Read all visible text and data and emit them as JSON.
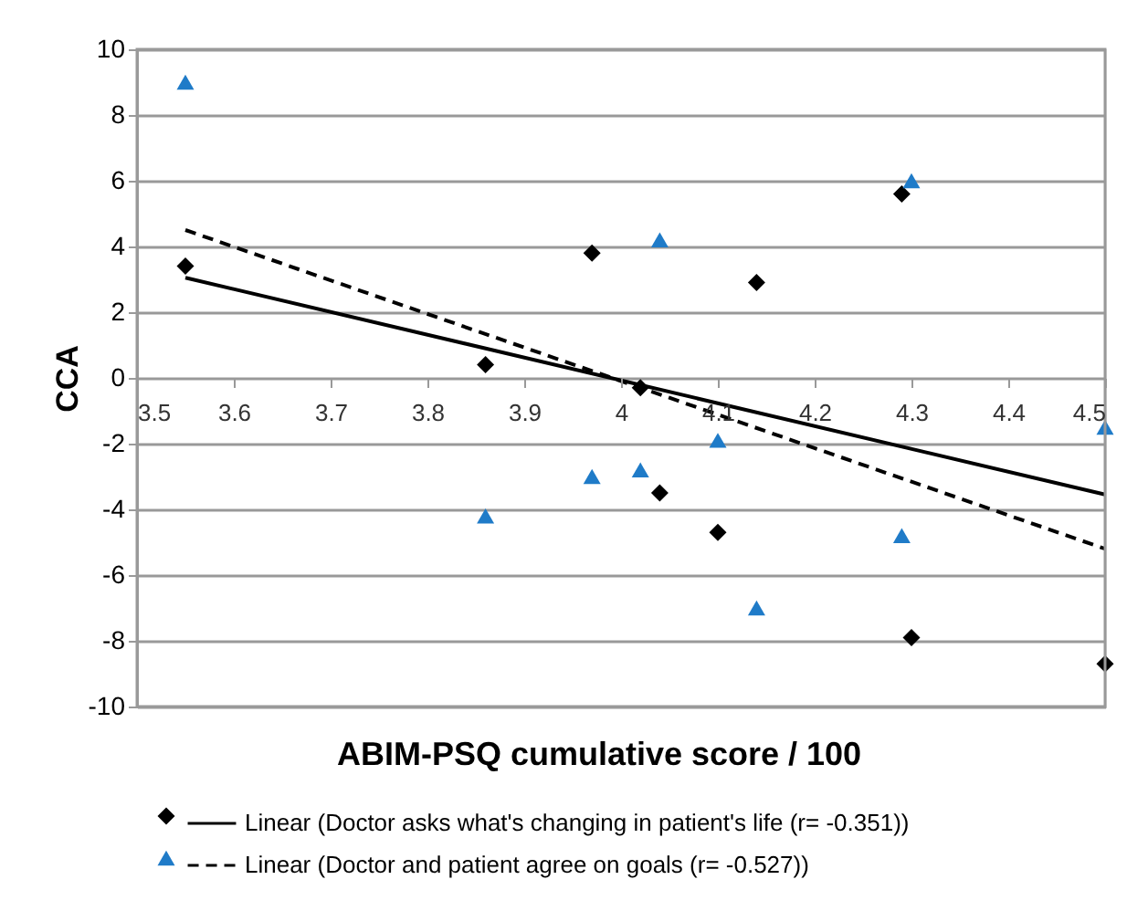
{
  "chart_data": {
    "type": "scatter",
    "xlabel": "ABIM-PSQ cumulative score / 100",
    "ylabel": "CCA",
    "xlim": [
      3.5,
      4.5
    ],
    "xticks": [
      3.5,
      3.6,
      3.7,
      3.8,
      3.9,
      4,
      4.1,
      4.2,
      4.3,
      4.4,
      4.5
    ],
    "ylim": [
      -10,
      10
    ],
    "yticks": [
      -10,
      -8,
      -6,
      -4,
      -2,
      0,
      2,
      4,
      6,
      8,
      10
    ],
    "grid": "y",
    "legend": "bottom",
    "series": [
      {
        "type": "scatter",
        "marker": "diamond",
        "color": "#000000",
        "x": [
          3.55,
          3.86,
          3.97,
          4.02,
          4.04,
          4.1,
          4.14,
          4.29,
          4.3,
          4.5
        ],
        "values": [
          3.4,
          0.4,
          3.8,
          -0.3,
          -3.5,
          -4.7,
          2.9,
          5.6,
          -7.9,
          -8.7
        ]
      },
      {
        "type": "scatter",
        "marker": "triangle",
        "color": "#1f7bc8",
        "x": [
          3.55,
          3.86,
          3.97,
          4.02,
          4.04,
          4.1,
          4.14,
          4.29,
          4.3,
          4.5
        ],
        "values": [
          9.0,
          -4.2,
          -3.0,
          -2.8,
          4.2,
          -1.9,
          -7.0,
          -4.8,
          6.0,
          -1.5
        ]
      },
      {
        "type": "line",
        "name": "Linear (Doctor asks what's changing in patient's life (r= -0.351))",
        "line_style": "solid",
        "color": "#000000",
        "x": [
          3.55,
          4.5
        ],
        "values": [
          3.05,
          -3.55
        ]
      },
      {
        "type": "line",
        "name": "Linear (Doctor and patient agree on goals (r= -0.527))",
        "line_style": "dashed",
        "color": "#000000",
        "x": [
          3.55,
          4.5
        ],
        "values": [
          4.5,
          -5.2
        ]
      }
    ]
  }
}
